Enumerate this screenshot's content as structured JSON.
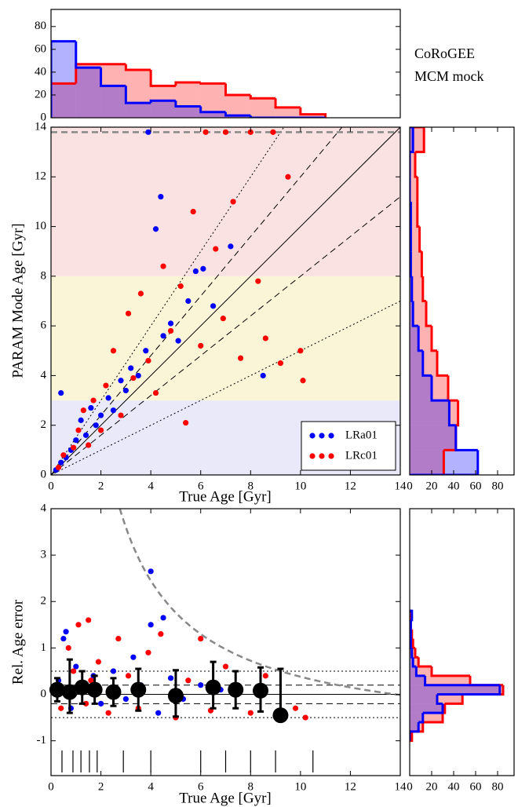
{
  "chart_data": [
    {
      "type": "histogram",
      "orientation": "vertical",
      "bins": [
        0,
        1,
        2,
        3,
        4,
        5,
        6,
        7,
        8,
        9,
        10,
        11
      ],
      "series": [
        {
          "color": "#ff0000",
          "values": [
            30,
            47,
            47,
            42,
            28,
            31,
            30,
            20,
            17,
            9,
            3
          ]
        },
        {
          "color": "#0000ff",
          "values": [
            67,
            44,
            28,
            13,
            15,
            10,
            5,
            2,
            0,
            0,
            0
          ]
        }
      ],
      "xlim": [
        0,
        14
      ],
      "ylim": [
        0,
        95
      ],
      "yticks": [
        0,
        20,
        40,
        60,
        80
      ],
      "annotation": [
        "CoRoGEE",
        "MCM mock"
      ]
    },
    {
      "type": "scatter",
      "xlabel": "True Age [Gyr]",
      "ylabel": "PARAM Mode Age [Gyr]",
      "xlim": [
        0,
        14
      ],
      "ylim": [
        0,
        14
      ],
      "xticks": [
        0,
        2,
        4,
        6,
        8,
        10,
        12,
        14
      ],
      "yticks": [
        0,
        2,
        4,
        6,
        8,
        10,
        12,
        14
      ],
      "bands": [
        {
          "range": [
            0,
            3
          ],
          "color": "#e9e9f9"
        },
        {
          "range": [
            3,
            8
          ],
          "color": "#fbf5d8"
        },
        {
          "range": [
            8,
            14
          ],
          "color": "#fbe2e2"
        }
      ],
      "reference_slopes": {
        "solid": [
          1
        ],
        "dashed": [
          1.2,
          0.8
        ],
        "dotted": [
          1.5,
          0.5
        ]
      },
      "age_limit": 13.8,
      "legend": "lower right",
      "series": [
        {
          "name": "LRa01",
          "color": "#0000ff",
          "x": [
            0.2,
            0.4,
            0.6,
            0.8,
            1.0,
            1.2,
            1.4,
            1.6,
            1.8,
            2.0,
            2.3,
            2.5,
            2.8,
            3.0,
            3.2,
            3.5,
            3.8,
            3.9,
            4.2,
            4.4,
            4.5,
            4.8,
            5.1,
            5.5,
            5.8,
            6.1,
            6.5,
            0.4,
            8.5,
            7.2
          ],
          "values": [
            0.2,
            0.5,
            0.7,
            1.0,
            1.4,
            2.2,
            1.6,
            2.7,
            2.0,
            2.4,
            3.1,
            2.6,
            3.8,
            3.4,
            4.3,
            4.0,
            5.0,
            13.8,
            9.9,
            11.2,
            5.6,
            6.1,
            5.4,
            7.0,
            8.2,
            8.3,
            6.8,
            3.3,
            4.0,
            9.2
          ]
        },
        {
          "name": "LRc01",
          "color": "#ff0000",
          "x": [
            0.3,
            0.5,
            0.9,
            1.1,
            1.3,
            1.5,
            1.7,
            2.0,
            2.2,
            2.5,
            2.8,
            3.1,
            3.3,
            3.6,
            3.9,
            4.2,
            4.5,
            4.8,
            5.2,
            5.4,
            5.7,
            6.0,
            6.2,
            6.6,
            6.9,
            7.3,
            7.6,
            8.0,
            8.3,
            8.6,
            8.9,
            9.2,
            9.5,
            10.0,
            10.1,
            7.0
          ],
          "values": [
            0.3,
            0.8,
            1.1,
            1.8,
            2.6,
            1.2,
            3.0,
            1.8,
            3.6,
            5.0,
            2.4,
            6.5,
            3.9,
            7.3,
            4.6,
            3.3,
            8.4,
            5.8,
            7.6,
            2.1,
            10.6,
            5.2,
            13.8,
            9.1,
            6.3,
            11.0,
            4.7,
            13.8,
            7.8,
            5.5,
            13.8,
            4.5,
            12.0,
            5.0,
            3.8,
            13.8
          ]
        }
      ]
    },
    {
      "type": "histogram",
      "orientation": "horizontal",
      "bins": [
        0,
        1,
        2,
        3,
        4,
        5,
        6,
        7,
        8,
        9,
        10,
        11,
        12,
        13,
        14
      ],
      "series": [
        {
          "color": "#ff0000",
          "values": [
            31,
            42,
            44,
            35,
            25,
            20,
            15,
            12,
            11,
            9,
            7,
            7,
            5,
            13
          ]
        },
        {
          "color": "#0000ff",
          "values": [
            62,
            42,
            36,
            20,
            12,
            8,
            3,
            2,
            1,
            1,
            1,
            0,
            0,
            3
          ]
        }
      ],
      "xlim": [
        0,
        95
      ],
      "xticks": [
        0,
        20,
        40,
        60,
        80
      ],
      "ylim": [
        0,
        14
      ]
    },
    {
      "type": "scatter",
      "xlabel": "True Age [Gyr]",
      "ylabel": "Rel. Age error",
      "xlim": [
        0,
        14
      ],
      "ylim": [
        -1.75,
        4
      ],
      "xticks": [
        0,
        2,
        4,
        6,
        8,
        10,
        12,
        14
      ],
      "yticks": [
        -1,
        0,
        1,
        2,
        3,
        4
      ],
      "reference_levels": {
        "solid": [
          0
        ],
        "dashed": [
          0.2,
          -0.2
        ],
        "dotted": [
          0.5,
          -0.5
        ]
      },
      "age_limit": 13.8,
      "bin_edges": [
        0.44,
        0.88,
        1.2,
        1.54,
        1.85,
        2.9,
        4.0,
        6.0,
        7.0,
        8.0,
        9.0,
        10.5
      ],
      "series": [
        {
          "color": "#0000ff",
          "x": [
            0.3,
            0.5,
            0.6,
            0.8,
            1.0,
            1.3,
            1.7,
            2.0,
            2.5,
            3.0,
            3.3,
            3.6,
            4.0,
            4.3,
            4.5,
            4.8,
            5.3,
            6.0,
            6.8,
            4.0
          ],
          "values": [
            0.3,
            1.2,
            1.35,
            -0.3,
            0.6,
            0.1,
            0.4,
            -0.2,
            0.5,
            -0.1,
            0.8,
            0.2,
            1.5,
            -0.4,
            1.65,
            0.35,
            -0.1,
            0.2,
            0.1,
            2.65
          ]
        },
        {
          "color": "#ff0000",
          "x": [
            0.2,
            0.4,
            0.7,
            0.9,
            1.1,
            1.4,
            1.6,
            1.9,
            2.3,
            2.7,
            3.1,
            3.5,
            3.9,
            4.4,
            5.0,
            5.5,
            6.0,
            6.4,
            7.0,
            7.5,
            8.0,
            8.6,
            9.2,
            9.8,
            10.2,
            1.5
          ],
          "values": [
            0.2,
            -0.3,
            1.0,
            0.5,
            1.5,
            -0.2,
            0.3,
            0.7,
            -0.4,
            1.2,
            0.4,
            -0.3,
            0.9,
            1.3,
            -0.5,
            0.3,
            1.2,
            -0.35,
            0.6,
            0.1,
            -0.4,
            0.4,
            -0.45,
            -0.3,
            -0.5,
            1.6
          ]
        }
      ],
      "binned": {
        "color": "#000000",
        "x": [
          0.25,
          0.75,
          1.25,
          1.75,
          2.5,
          3.5,
          5.0,
          6.5,
          7.4,
          8.4,
          9.2
        ],
        "values": [
          0.1,
          0.05,
          0.15,
          0.1,
          0.05,
          0.1,
          -0.03,
          0.15,
          0.1,
          0.08,
          -0.45
        ],
        "error_low": [
          0.25,
          0.45,
          0.35,
          0.3,
          0.3,
          0.45,
          0.45,
          0.45,
          0.4,
          0.45,
          0.1
        ],
        "error_high": [
          0.25,
          0.7,
          0.35,
          0.3,
          0.3,
          0.45,
          0.55,
          0.55,
          0.4,
          0.5,
          1.0
        ]
      }
    },
    {
      "type": "histogram",
      "orientation": "horizontal",
      "bins": [
        -1,
        -0.8,
        -0.6,
        -0.4,
        -0.2,
        0,
        0.2,
        0.4,
        0.6,
        0.8,
        1,
        1.2,
        1.4,
        1.6,
        1.8
      ],
      "series": [
        {
          "color": "#ff0000",
          "values": [
            2,
            12,
            30,
            32,
            48,
            85,
            55,
            20,
            8,
            5,
            3,
            2,
            1,
            1
          ]
        },
        {
          "color": "#0000ff",
          "values": [
            0,
            8,
            12,
            30,
            25,
            82,
            14,
            6,
            3,
            2,
            1,
            1,
            1,
            2
          ]
        }
      ],
      "xlim": [
        0,
        95
      ],
      "xticks": [
        0,
        20,
        40,
        60,
        80
      ],
      "ylim": [
        -1.75,
        4
      ]
    }
  ]
}
